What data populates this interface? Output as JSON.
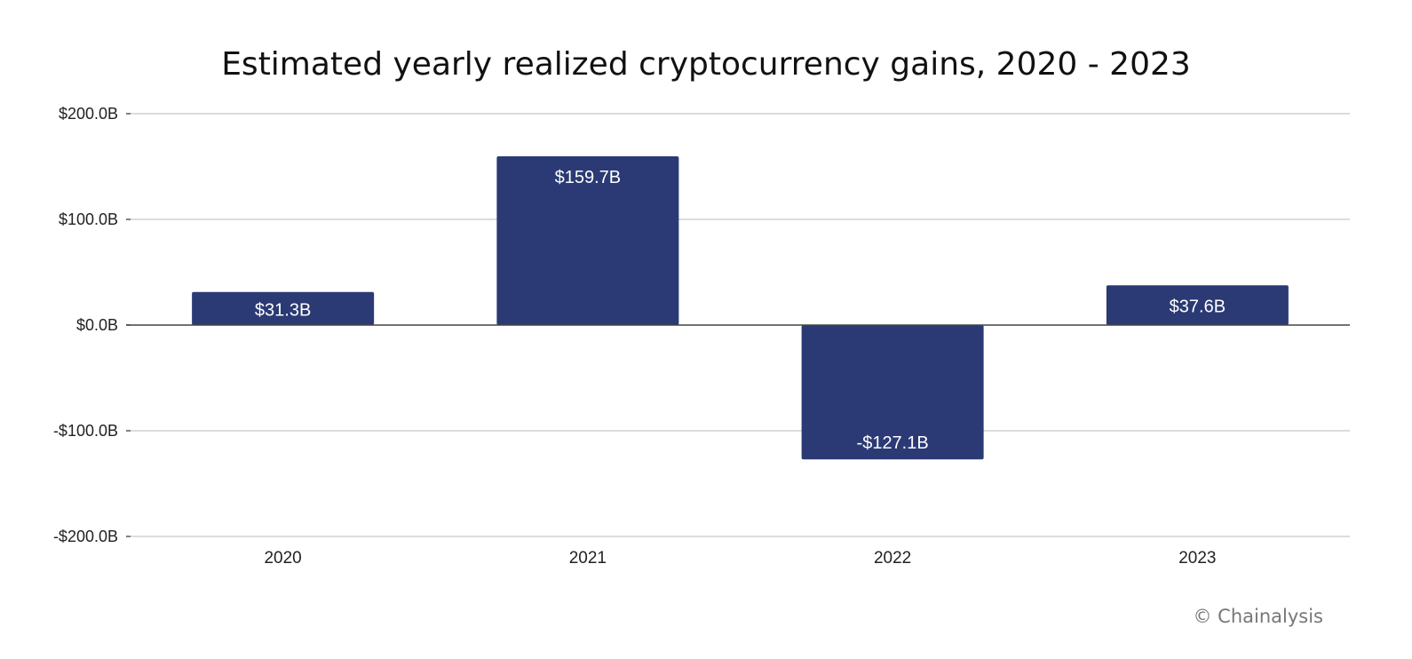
{
  "chart_data": {
    "type": "bar",
    "title": "Estimated yearly realized cryptocurrency gains, 2020 - 2023",
    "categories": [
      "2020",
      "2021",
      "2022",
      "2023"
    ],
    "values": [
      31.3,
      159.7,
      -127.1,
      37.6
    ],
    "value_labels": [
      "$31.3B",
      "$159.7B",
      "-$127.1B",
      "$37.6B"
    ],
    "ylim": [
      -200,
      200
    ],
    "yticks": [
      200,
      100,
      0,
      -100,
      -200
    ],
    "ytick_labels": [
      "$200.0B",
      "$100.0B",
      "$0.0B",
      "-$100.0B",
      "-$200.0B"
    ],
    "xlabel": "",
    "ylabel": "",
    "grid": true,
    "legend": "none",
    "bar_color": "#2b3a74",
    "credit": "© Chainalysis"
  }
}
